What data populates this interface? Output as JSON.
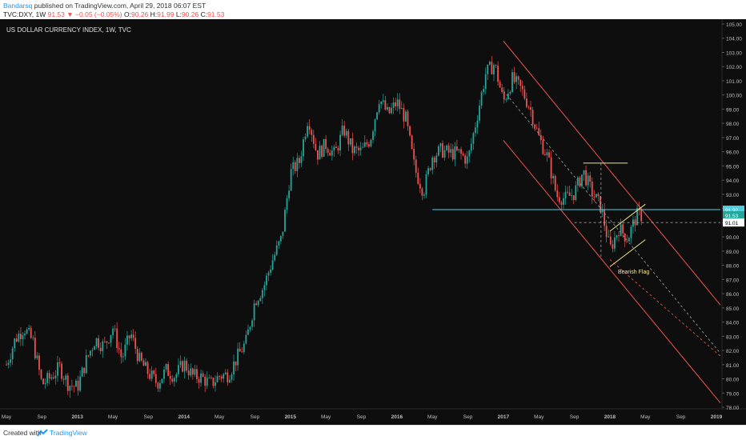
{
  "header": {
    "author": "Bandarsq",
    "published": "published on TradingView.com, April 29, 2018 06:07 EST",
    "symbol": "TVC:DXY, 1W",
    "last": "91.53",
    "change": "−0.05 (−0.05%)",
    "o_label": "O:",
    "o_value": "90.26",
    "h_label": "H:",
    "h_value": "91.99",
    "l_label": "L:",
    "l_value": "90.26",
    "c_label": "C:",
    "c_value": "91.53"
  },
  "footer": {
    "created": "Created with",
    "brand": "TradingView",
    "logo_icon": "tradingview-logo-icon"
  },
  "colors": {
    "background": "#0e0e0e",
    "up": "#26a69a",
    "down": "#ef5350",
    "channel": "#ef5350",
    "support": "#4dd0e1",
    "flag": "#f0e68c",
    "axis_text": "#bdbdbd",
    "grid_dash": "#9e9e9e"
  },
  "chart_data": {
    "type": "candlestick",
    "title": "US DOLLAR CURRENCY INDEX, 1W, TVC",
    "x_tick_labels": [
      "May",
      "Sep",
      "2013",
      "May",
      "Sep",
      "2014",
      "May",
      "Sep",
      "2015",
      "May",
      "Sep",
      "2016",
      "May",
      "Sep",
      "2017",
      "May",
      "Sep",
      "2018",
      "May",
      "Sep",
      "2019"
    ],
    "x_range": [
      "2012-05",
      "2019-01"
    ],
    "y_tick_labels": [
      "78.00",
      "79.00",
      "80.00",
      "81.00",
      "82.00",
      "83.00",
      "84.00",
      "85.00",
      "86.00",
      "87.00",
      "88.00",
      "89.00",
      "90.00",
      "91.00",
      "92.00",
      "93.00",
      "94.00",
      "95.00",
      "96.00",
      "97.00",
      "98.00",
      "99.00",
      "100.00",
      "101.00",
      "102.00",
      "103.00",
      "104.00",
      "105.00"
    ],
    "ylim": [
      77.5,
      105.3
    ],
    "price_labels": [
      {
        "value": 91.92,
        "text": "91.92",
        "color": "#4dd0e1"
      },
      {
        "value": 91.53,
        "text": "91.53",
        "color": "#26a69a"
      },
      {
        "value": 91.01,
        "text": "91.01",
        "color": "#ffffff"
      }
    ],
    "weekly_path": [
      {
        "date": "2012-05",
        "value": 81.0
      },
      {
        "date": "2012-06",
        "value": 82.8
      },
      {
        "date": "2012-07",
        "value": 83.6
      },
      {
        "date": "2012-08",
        "value": 82.6
      },
      {
        "date": "2012-09",
        "value": 79.6
      },
      {
        "date": "2012-10",
        "value": 80.1
      },
      {
        "date": "2012-11",
        "value": 80.8
      },
      {
        "date": "2012-12",
        "value": 79.6
      },
      {
        "date": "2013-01",
        "value": 79.4
      },
      {
        "date": "2013-02",
        "value": 81.3
      },
      {
        "date": "2013-03",
        "value": 82.8
      },
      {
        "date": "2013-04",
        "value": 82.3
      },
      {
        "date": "2013-05",
        "value": 83.6
      },
      {
        "date": "2013-06",
        "value": 81.4
      },
      {
        "date": "2013-07",
        "value": 83.2
      },
      {
        "date": "2013-08",
        "value": 81.3
      },
      {
        "date": "2013-09",
        "value": 80.4
      },
      {
        "date": "2013-10",
        "value": 79.7
      },
      {
        "date": "2013-11",
        "value": 80.6
      },
      {
        "date": "2013-12",
        "value": 80.2
      },
      {
        "date": "2014-01",
        "value": 81.1
      },
      {
        "date": "2014-02",
        "value": 80.2
      },
      {
        "date": "2014-03",
        "value": 80.1
      },
      {
        "date": "2014-04",
        "value": 79.6
      },
      {
        "date": "2014-05",
        "value": 80.2
      },
      {
        "date": "2014-06",
        "value": 80.3
      },
      {
        "date": "2014-07",
        "value": 81.5
      },
      {
        "date": "2014-08",
        "value": 82.6
      },
      {
        "date": "2014-09",
        "value": 85.5
      },
      {
        "date": "2014-10",
        "value": 86.5
      },
      {
        "date": "2014-11",
        "value": 88.4
      },
      {
        "date": "2014-12",
        "value": 89.9
      },
      {
        "date": "2015-01",
        "value": 94.5
      },
      {
        "date": "2015-02",
        "value": 95.3
      },
      {
        "date": "2015-03",
        "value": 98.5
      },
      {
        "date": "2015-04",
        "value": 95.8
      },
      {
        "date": "2015-05",
        "value": 96.5
      },
      {
        "date": "2015-06",
        "value": 95.8
      },
      {
        "date": "2015-07",
        "value": 97.6
      },
      {
        "date": "2015-08",
        "value": 96.1
      },
      {
        "date": "2015-09",
        "value": 96.0
      },
      {
        "date": "2015-10",
        "value": 96.9
      },
      {
        "date": "2015-11",
        "value": 99.8
      },
      {
        "date": "2015-12",
        "value": 98.6
      },
      {
        "date": "2016-01",
        "value": 99.5
      },
      {
        "date": "2016-02",
        "value": 98.3
      },
      {
        "date": "2016-03",
        "value": 94.8
      },
      {
        "date": "2016-04",
        "value": 93.2
      },
      {
        "date": "2016-05",
        "value": 95.7
      },
      {
        "date": "2016-06",
        "value": 96.1
      },
      {
        "date": "2016-07",
        "value": 95.9
      },
      {
        "date": "2016-08",
        "value": 95.9
      },
      {
        "date": "2016-09",
        "value": 95.4
      },
      {
        "date": "2016-10",
        "value": 98.4
      },
      {
        "date": "2016-11",
        "value": 101.5
      },
      {
        "date": "2016-12",
        "value": 102.2
      },
      {
        "date": "2017-01",
        "value": 99.5
      },
      {
        "date": "2017-02",
        "value": 101.1
      },
      {
        "date": "2017-03",
        "value": 100.4
      },
      {
        "date": "2017-04",
        "value": 99.1
      },
      {
        "date": "2017-05",
        "value": 97.0
      },
      {
        "date": "2017-06",
        "value": 95.6
      },
      {
        "date": "2017-07",
        "value": 92.9
      },
      {
        "date": "2017-08",
        "value": 92.7
      },
      {
        "date": "2017-09",
        "value": 93.1
      },
      {
        "date": "2017-10",
        "value": 94.6
      },
      {
        "date": "2017-11",
        "value": 93.1
      },
      {
        "date": "2017-12",
        "value": 92.1
      },
      {
        "date": "2018-01",
        "value": 89.1
      },
      {
        "date": "2018-02",
        "value": 90.6
      },
      {
        "date": "2018-03",
        "value": 89.9
      },
      {
        "date": "2018-04",
        "value": 91.5
      }
    ],
    "annotations": [
      {
        "type": "text",
        "text": "Bearish Flag",
        "date": "2018-01",
        "value": 87.4
      }
    ]
  }
}
